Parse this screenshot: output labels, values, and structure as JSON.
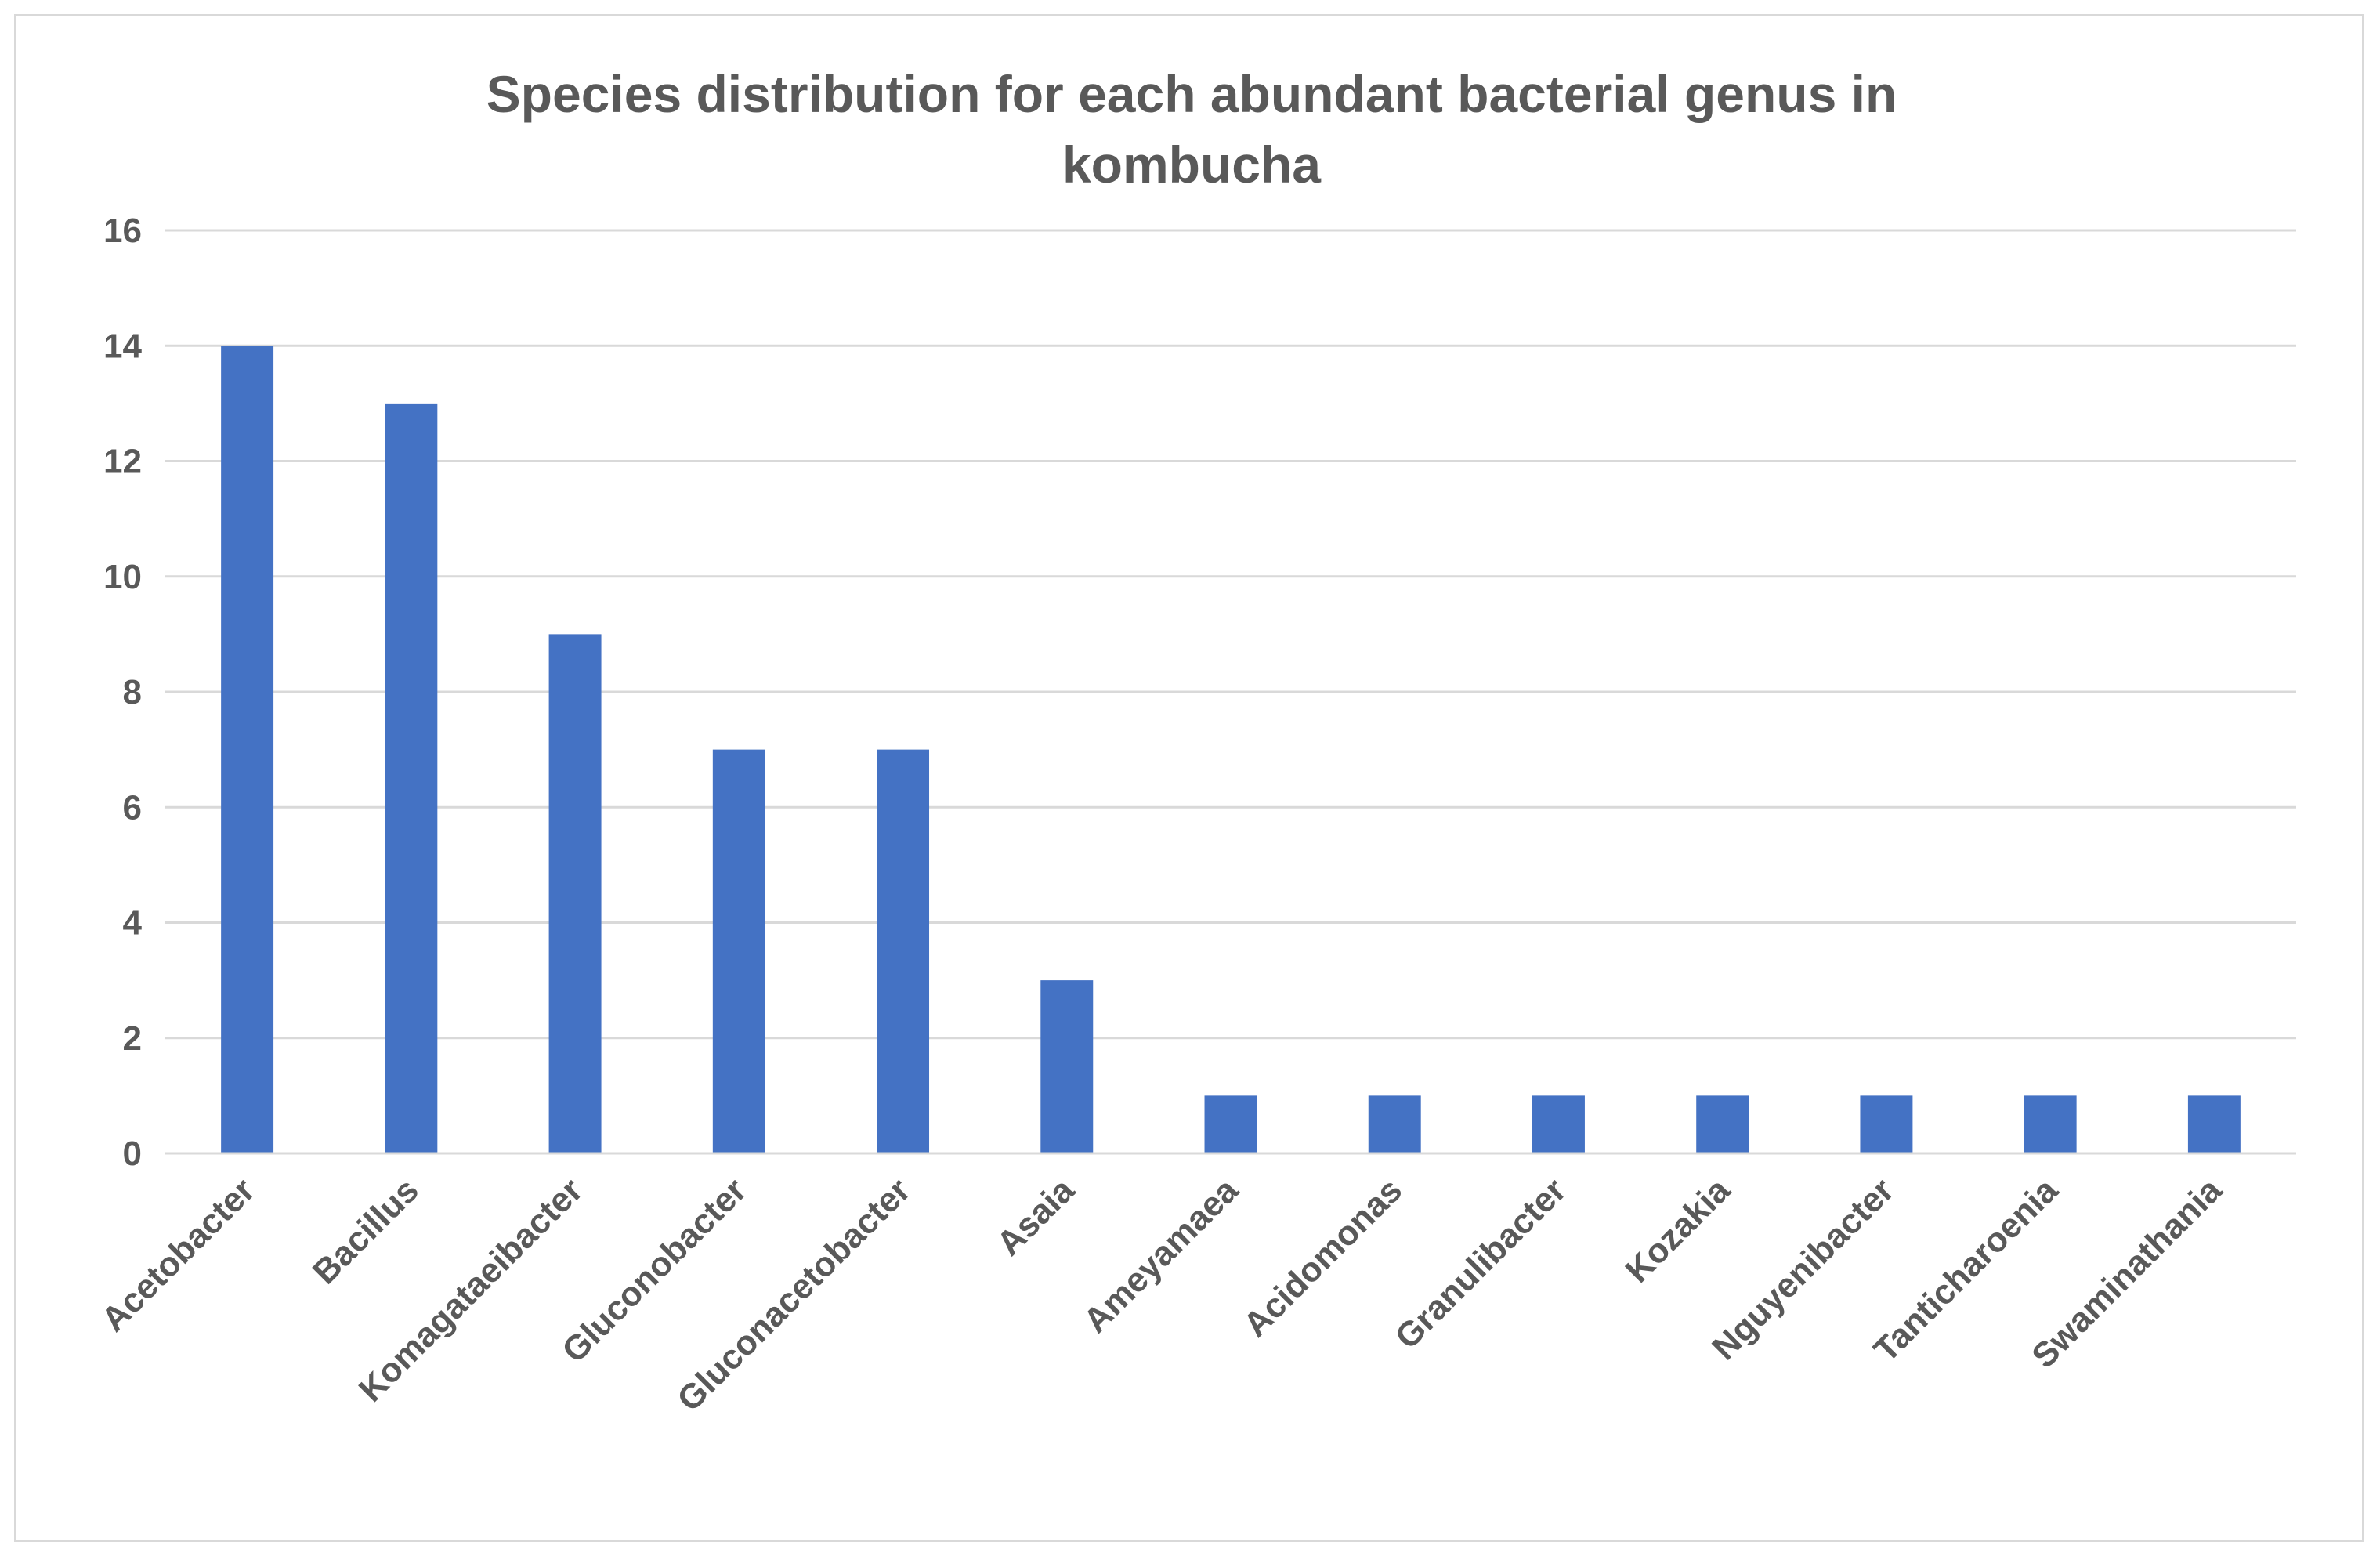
{
  "chart_data": {
    "type": "bar",
    "title": "Species distribution for each abundant bacterial genus in kombucha",
    "title_lines": [
      "Species distribution for each abundant bacterial genus in",
      "kombucha"
    ],
    "categories": [
      "Acetobacter",
      "Bacillus",
      "Komagataeibacter",
      "Gluconobacter",
      "Gluconacetobacter",
      "Asaia",
      "Ameyamaea",
      "Acidomonas",
      "Granulibacter",
      "Kozakia",
      "Nguyenibacter",
      "Tanticharoenia",
      "Swaminathania"
    ],
    "values": [
      14,
      13,
      9,
      7,
      7,
      3,
      1,
      1,
      1,
      1,
      1,
      1,
      1
    ],
    "xlabel": "",
    "ylabel": "",
    "ylim": [
      0,
      16
    ],
    "yticks": [
      0,
      2,
      4,
      6,
      8,
      10,
      12,
      14,
      16
    ],
    "grid": true,
    "bar_color": "#4472c4",
    "grid_color": "#d9d9d9",
    "text_color": "#595959"
  }
}
